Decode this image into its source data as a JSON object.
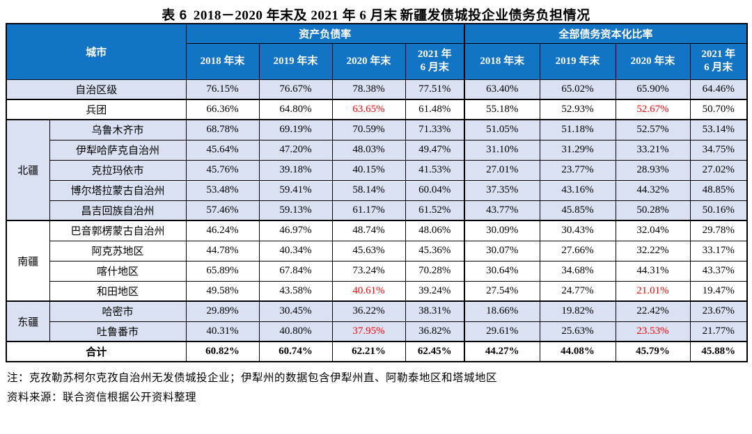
{
  "title": {
    "label": "表 6",
    "period": "2018－2020 年末及 2021 年 6 月末",
    "subject": "新疆发债城投企业债务负担情况"
  },
  "colors": {
    "header_blue": "#1274C5",
    "row_shade": "#D9E1F2",
    "highlight_red": "#FF0000"
  },
  "table": {
    "city_header": "城市",
    "group_headers": [
      "资产负债率",
      "全部债务资本化比率"
    ],
    "year_headers": [
      "2018 年末",
      "2019 年末",
      "2020 年末",
      "2021 年\n6 月末"
    ],
    "rows": [
      {
        "city": "自治区级",
        "city_span": true,
        "shade": true,
        "group_end": true,
        "red": [],
        "values": [
          "76.15%",
          "76.67%",
          "78.38%",
          "77.51%",
          "63.40%",
          "65.02%",
          "65.90%",
          "64.46%"
        ]
      },
      {
        "city": "兵团",
        "city_span": true,
        "shade": false,
        "group_end": true,
        "red": [
          2,
          6
        ],
        "values": [
          "66.36%",
          "64.80%",
          "63.65%",
          "61.48%",
          "55.18%",
          "52.93%",
          "52.67%",
          "50.70%"
        ]
      },
      {
        "region": "北疆",
        "region_span": 5,
        "city": "乌鲁木齐市",
        "shade": true,
        "red": [],
        "values": [
          "68.78%",
          "69.19%",
          "70.59%",
          "71.33%",
          "51.05%",
          "51.18%",
          "52.57%",
          "53.14%"
        ]
      },
      {
        "city": "伊犁哈萨克自治州",
        "shade": true,
        "red": [],
        "values": [
          "45.64%",
          "47.20%",
          "48.03%",
          "49.47%",
          "31.10%",
          "31.29%",
          "33.21%",
          "34.75%"
        ]
      },
      {
        "city": "克拉玛依市",
        "shade": true,
        "red": [],
        "values": [
          "45.76%",
          "39.18%",
          "40.15%",
          "41.53%",
          "27.01%",
          "23.77%",
          "28.93%",
          "27.02%"
        ]
      },
      {
        "city": "博尔塔拉蒙古自治州",
        "shade": true,
        "red": [],
        "values": [
          "53.48%",
          "59.41%",
          "58.14%",
          "60.04%",
          "37.35%",
          "43.16%",
          "44.32%",
          "48.85%"
        ]
      },
      {
        "city": "昌吉回族自治州",
        "shade": true,
        "red": [],
        "group_end": true,
        "values": [
          "57.46%",
          "59.13%",
          "61.17%",
          "61.52%",
          "43.77%",
          "45.85%",
          "50.28%",
          "50.16%"
        ]
      },
      {
        "region": "南疆",
        "region_span": 4,
        "city": "巴音郭楞蒙古自治州",
        "shade": false,
        "red": [],
        "values": [
          "46.24%",
          "46.97%",
          "48.74%",
          "48.06%",
          "30.09%",
          "30.43%",
          "32.04%",
          "29.78%"
        ]
      },
      {
        "city": "阿克苏地区",
        "shade": false,
        "red": [],
        "values": [
          "44.78%",
          "40.34%",
          "45.63%",
          "45.36%",
          "30.07%",
          "27.66%",
          "32.22%",
          "33.17%"
        ]
      },
      {
        "city": "喀什地区",
        "shade": false,
        "red": [],
        "values": [
          "65.89%",
          "67.84%",
          "73.24%",
          "70.28%",
          "30.64%",
          "34.68%",
          "44.31%",
          "43.37%"
        ]
      },
      {
        "city": "和田地区",
        "shade": false,
        "red": [
          2,
          6
        ],
        "group_end": true,
        "values": [
          "49.58%",
          "43.58%",
          "40.61%",
          "39.24%",
          "27.54%",
          "24.77%",
          "21.01%",
          "19.47%"
        ]
      },
      {
        "region": "东疆",
        "region_span": 2,
        "city": "哈密市",
        "shade": true,
        "red": [],
        "values": [
          "29.89%",
          "30.45%",
          "36.22%",
          "38.31%",
          "18.66%",
          "19.82%",
          "22.42%",
          "23.67%"
        ]
      },
      {
        "city": "吐鲁番市",
        "shade": true,
        "red": [
          2,
          6
        ],
        "group_end": true,
        "values": [
          "40.31%",
          "40.80%",
          "37.95%",
          "36.82%",
          "29.61%",
          "25.63%",
          "23.53%",
          "21.77%"
        ]
      },
      {
        "city": "合计",
        "city_span": true,
        "shade": false,
        "bold": true,
        "red": [],
        "values": [
          "60.82%",
          "60.74%",
          "62.21%",
          "62.45%",
          "44.27%",
          "44.08%",
          "45.79%",
          "45.88%"
        ]
      }
    ]
  },
  "notes": {
    "note": "注：克孜勒苏柯尔克孜自治州无发债城投企业；伊犁州的数据包含伊犁州直、阿勒泰地区和塔城地区",
    "source": "资料来源：联合资信根据公开资料整理"
  }
}
